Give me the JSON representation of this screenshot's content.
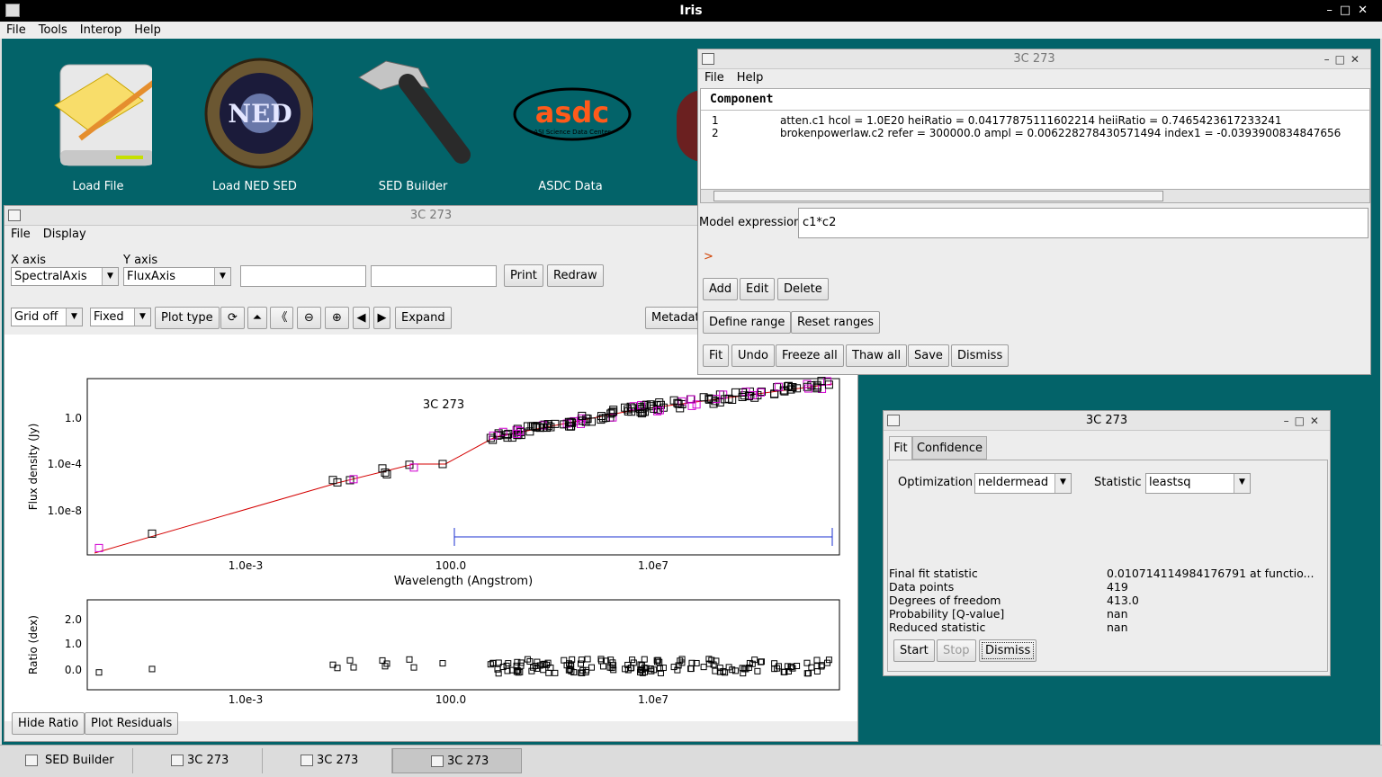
{
  "app": {
    "title": "Iris"
  },
  "menu": [
    "File",
    "Tools",
    "Interop",
    "Help"
  ],
  "desktop_icons": [
    {
      "label": "Load File",
      "icon": "folder-drive-icon"
    },
    {
      "label": "Load NED SED",
      "icon": "ned-logo-icon"
    },
    {
      "label": "SED Builder",
      "icon": "hammer-icon"
    },
    {
      "label": "ASDC Data",
      "icon": "asdc-logo-icon"
    }
  ],
  "asdc_logo": {
    "text": "asdc",
    "sub": "ASI Science Data Center"
  },
  "ned_logo": {
    "text": "NED"
  },
  "plot_window": {
    "title": "3C 273",
    "menu": [
      "File",
      "Display"
    ],
    "x_axis_label": "X axis",
    "y_axis_label": "Y axis",
    "x_axis_value": "SpectralAxis",
    "y_axis_value": "FluxAxis",
    "print": "Print",
    "redraw": "Redraw",
    "grid": "Grid off",
    "scale": "Fixed",
    "plot_type": "Plot type",
    "expand": "Expand",
    "metadata": "Metadata",
    "hide_ratio": "Hide Ratio",
    "plot_residuals": "Plot Residuals"
  },
  "chart_data": [
    {
      "type": "scatter",
      "title": "3C 273",
      "xlabel": "Wavelength (Angstrom)",
      "ylabel": "Flux density (Jy)",
      "xscale": "log",
      "yscale": "log",
      "xticks": [
        "1.0e-3",
        "100.0",
        "1.0e7"
      ],
      "yticks": [
        "1.0",
        "1.0e-4",
        "1.0e-8"
      ],
      "grid": false,
      "legend": "none"
    },
    {
      "type": "scatter",
      "title": "",
      "xlabel": "",
      "ylabel": "Ratio (dex)",
      "xticks": [
        "1.0e-3",
        "100.0",
        "1.0e7"
      ],
      "yticks": [
        "2.0",
        "1.0",
        "0.0"
      ],
      "grid": false,
      "legend": "none"
    }
  ],
  "model_window": {
    "title": "3C 273",
    "menu": [
      "File",
      "Help"
    ],
    "component_header": "Component",
    "components": [
      {
        "n": "1",
        "text": "atten.c1   hcol = 1.0E20 heiRatio = 0.04177875111602214 heiiRatio = 0.7465423617233241"
      },
      {
        "n": "2",
        "text": "brokenpowerlaw.c2   refer = 300000.0 ampl = 0.006228278430571494 index1 = -0.0393900834847656"
      }
    ],
    "model_expression_label": "Model expression",
    "model_expression": "c1*c2",
    "prompt": ">",
    "buttons": {
      "add": "Add",
      "edit": "Edit",
      "delete": "Delete",
      "define_range": "Define range",
      "reset_ranges": "Reset ranges",
      "fit": "Fit",
      "undo": "Undo",
      "freeze_all": "Freeze all",
      "thaw_all": "Thaw all",
      "save": "Save",
      "dismiss": "Dismiss"
    }
  },
  "fit_window": {
    "title": "3C 273",
    "tabs": [
      "Fit",
      "Confidence"
    ],
    "optimization_label": "Optimization",
    "optimization": "neldermead",
    "statistic_label": "Statistic",
    "statistic": "leastsq",
    "results": [
      {
        "k": "Final fit statistic",
        "v": "0.010714114984176791  at functio..."
      },
      {
        "k": "Data points",
        "v": "419"
      },
      {
        "k": "Degrees of freedom",
        "v": "413.0"
      },
      {
        "k": "Probability [Q-value]",
        "v": "nan"
      },
      {
        "k": "Reduced statistic",
        "v": "nan"
      }
    ],
    "start": "Start",
    "stop": "Stop",
    "dismiss": "Dismiss"
  },
  "taskbar": [
    "SED Builder",
    "3C 273",
    "3C 273",
    "3C 273"
  ]
}
